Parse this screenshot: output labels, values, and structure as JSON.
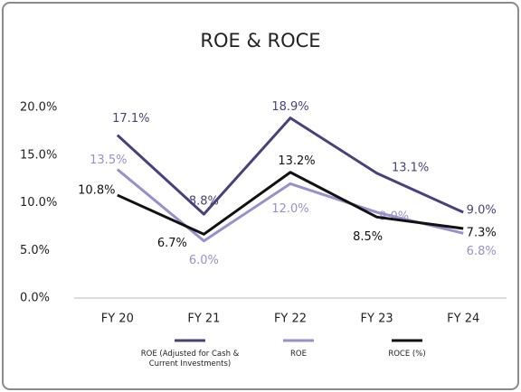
{
  "chart_data": {
    "type": "line",
    "title": "ROE & ROCE",
    "categories": [
      "FY 20",
      "FY 21",
      "FY 22",
      "FY 23",
      "FY 24"
    ],
    "ylim": [
      0,
      20
    ],
    "yticks": [
      {
        "value": 0,
        "label": "0.0%"
      },
      {
        "value": 5,
        "label": "5.0%"
      },
      {
        "value": 10,
        "label": "10.0%"
      },
      {
        "value": 15,
        "label": "15.0%"
      },
      {
        "value": 20,
        "label": "20.0%"
      }
    ],
    "grid": false,
    "legend": "bottom",
    "series": [
      {
        "name": "ROE (Adjusted for Cash & Current Investments)",
        "color": "#4b3f7c",
        "values": [
          17.1,
          8.8,
          18.9,
          13.1,
          9.0
        ],
        "value_labels": [
          "17.1%",
          "8.8%",
          "18.9%",
          "13.1%",
          "9.0%"
        ]
      },
      {
        "name": "ROE",
        "color": "#9a8fca",
        "values": [
          13.5,
          6.0,
          12.0,
          9.0,
          6.8
        ],
        "value_labels": [
          "13.5%",
          "6.0%",
          "12.0%",
          "9.0%",
          "6.8%"
        ]
      },
      {
        "name": "ROCE (%)",
        "color": "#111111",
        "values": [
          10.8,
          6.7,
          13.2,
          8.5,
          7.3
        ],
        "value_labels": [
          "10.8%",
          "6.7%",
          "13.2%",
          "8.5%",
          "7.3%"
        ]
      }
    ]
  }
}
